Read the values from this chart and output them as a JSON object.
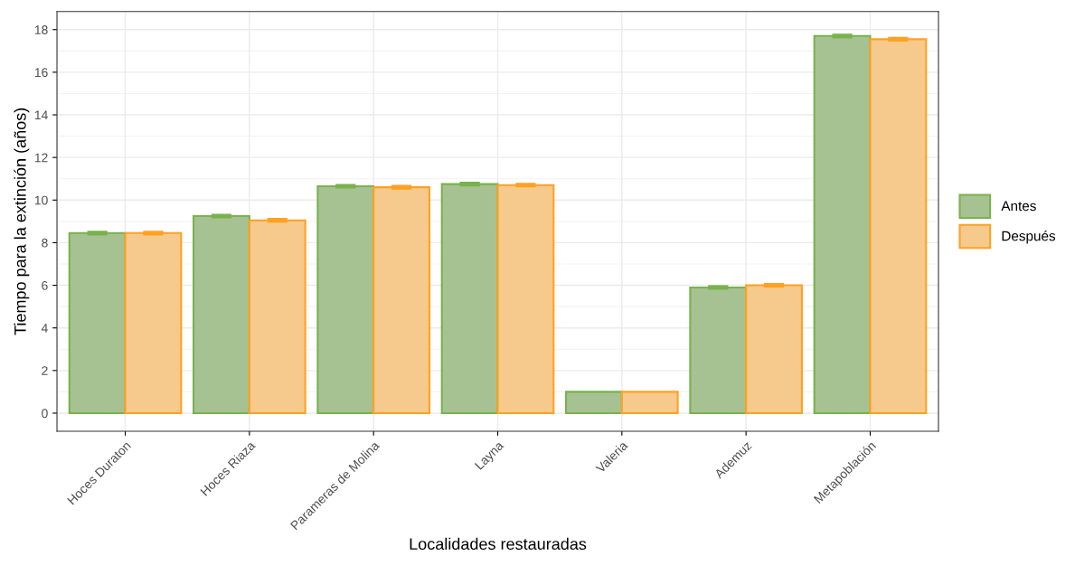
{
  "chart_data": {
    "type": "bar",
    "xlabel": "Localidades restauradas",
    "ylabel": "Tiempo para la extinción (años)",
    "categories": [
      "Hoces Duraton",
      "Hoces Riaza",
      "Parameras de Molina",
      "Layna",
      "Valeria",
      "Ademuz",
      "Metapoblación"
    ],
    "series": [
      {
        "name": "Antes",
        "color": "#a7c292",
        "values": [
          8.45,
          9.25,
          10.65,
          10.75,
          1.0,
          5.9,
          17.7
        ],
        "errors": [
          0.05,
          0.05,
          0.05,
          0.05,
          null,
          0.05,
          0.05
        ]
      },
      {
        "name": "Después",
        "color": "#f6c98c",
        "values": [
          8.45,
          9.05,
          10.6,
          10.7,
          1.0,
          6.0,
          17.55
        ],
        "errors": [
          0.05,
          0.05,
          0.05,
          0.05,
          null,
          0.05,
          0.05
        ]
      }
    ],
    "ylim": [
      -0.85,
      18.85
    ],
    "yticks": [
      0,
      2,
      4,
      6,
      8,
      10,
      12,
      14,
      16,
      18
    ],
    "grid": true,
    "legend": "right"
  }
}
